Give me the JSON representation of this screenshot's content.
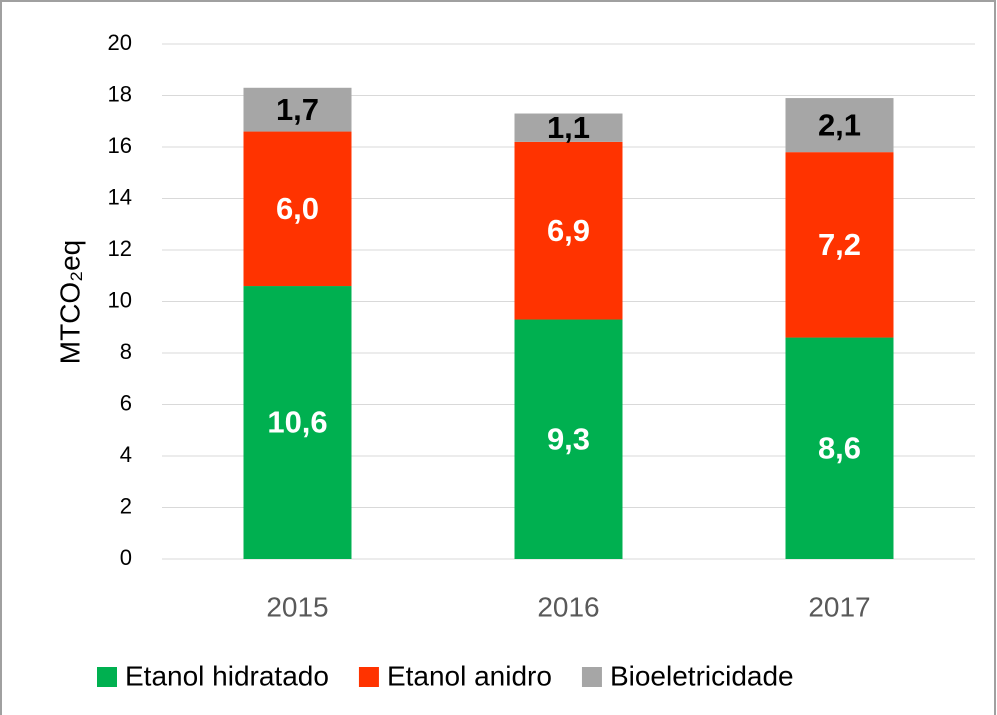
{
  "chart_data": {
    "type": "stacked_bar",
    "y_label": "MTCO₂eq",
    "categories": [
      "2015",
      "2016",
      "2017"
    ],
    "series": [
      {
        "name": "Etanol hidratado",
        "color": "#00b050",
        "values": [
          10.6,
          9.3,
          8.6
        ],
        "value_labels": [
          "10,6",
          "9,3",
          "8,6"
        ],
        "label_color": "#ffffff"
      },
      {
        "name": "Etanol anidro",
        "color": "#ff3300",
        "values": [
          6.0,
          6.9,
          7.2
        ],
        "value_labels": [
          "6,0",
          "6,9",
          "7,2"
        ],
        "label_color": "#ffffff"
      },
      {
        "name": "Bioeletricidade",
        "color": "#a6a6a6",
        "values": [
          1.7,
          1.1,
          2.1
        ],
        "value_labels": [
          "1,7",
          "1,1",
          "2,1"
        ],
        "label_color": "#000000"
      }
    ],
    "ylim": [
      0,
      20
    ],
    "yticks": [
      0,
      2,
      4,
      6,
      8,
      10,
      12,
      14,
      16,
      18,
      20
    ],
    "grid": true,
    "legend": "bottom"
  }
}
